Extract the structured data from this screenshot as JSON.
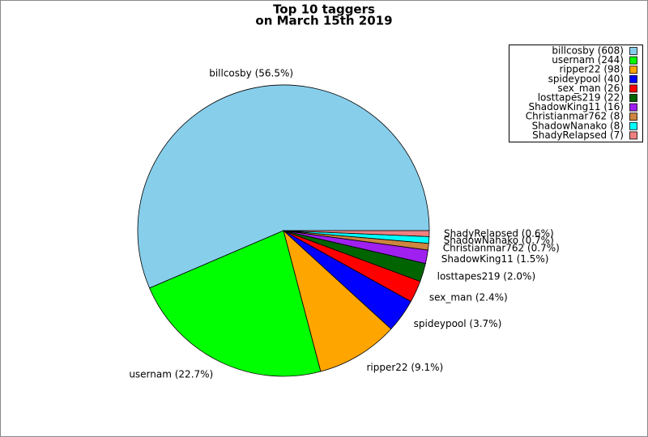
{
  "chart_data": {
    "type": "pie",
    "title": [
      "Top 10 taggers",
      "on March 15th 2019"
    ],
    "legend_labels": [
      "billcosby (608)",
      "usernam (244)",
      "ripper22 (98)",
      "spideypool (40)",
      "sex_man (26)",
      "losttapes219 (22)",
      "ShadowKing11 (16)",
      "Christianmar762 (8)",
      "ShadowNanako (8)",
      "ShadyRelapsed (7)"
    ],
    "slice_labels": [
      "billcosby (56.5%)",
      "usernam (22.7%)",
      "ripper22 (9.1%)",
      "spideypool (3.7%)",
      "sex_man (2.4%)",
      "losttapes219 (2.0%)",
      "ShadowKing11 (1.5%)",
      "Christianmar762 (0.7%)",
      "ShadowNanako (0.7%)",
      "ShadyRelapsed (0.6%)"
    ],
    "values": [
      608,
      244,
      98,
      40,
      26,
      22,
      16,
      8,
      8,
      7
    ],
    "colors": [
      "#87ceeb",
      "#00ff00",
      "#ffa500",
      "#0000ff",
      "#ff0000",
      "#006400",
      "#a020f0",
      "#cd853f",
      "#00ffff",
      "#f08080"
    ],
    "legend": "upper right"
  }
}
